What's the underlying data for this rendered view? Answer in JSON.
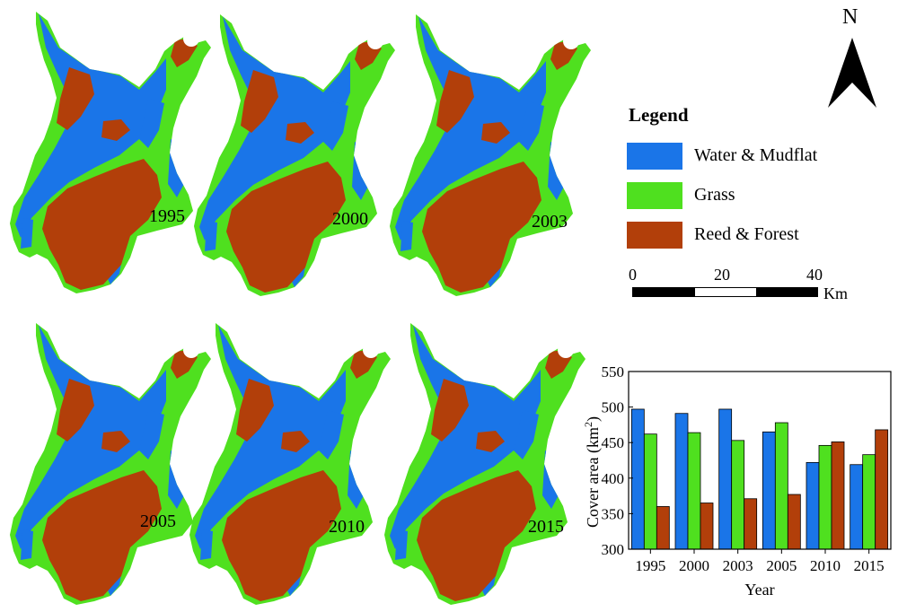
{
  "colors": {
    "water": "#1a75e8",
    "grass": "#4fe01f",
    "reed": "#b23f0a"
  },
  "maps": [
    {
      "year": "1995"
    },
    {
      "year": "2000"
    },
    {
      "year": "2003"
    },
    {
      "year": "2005"
    },
    {
      "year": "2010"
    },
    {
      "year": "2015"
    }
  ],
  "north_arrow": {
    "letter": "N"
  },
  "legend": {
    "title": "Legend",
    "items": [
      {
        "label": "Water & Mudflat",
        "color": "#1a75e8"
      },
      {
        "label": "Grass",
        "color": "#4fe01f"
      },
      {
        "label": "Reed & Forest",
        "color": "#b23f0a"
      }
    ]
  },
  "scale_bar": {
    "ticks": [
      "0",
      "20",
      "40"
    ],
    "unit": "Km"
  },
  "chart_data": {
    "type": "bar",
    "categories": [
      "1995",
      "2000",
      "2003",
      "2005",
      "2010",
      "2015"
    ],
    "series": [
      {
        "name": "Water & Mudflat",
        "color": "#1a75e8",
        "values": [
          497,
          491,
          497,
          465,
          422,
          419
        ]
      },
      {
        "name": "Grass",
        "color": "#4fe01f",
        "values": [
          462,
          464,
          453,
          478,
          446,
          433
        ]
      },
      {
        "name": "Reed & Forest",
        "color": "#b23f0a",
        "values": [
          360,
          365,
          371,
          377,
          451,
          468
        ]
      }
    ],
    "ylabel": "Cover area (km²)",
    "ylabel_main": "Cover area (km",
    "ylabel_sup": "2",
    "ylabel_end": ")",
    "xlabel": "Year",
    "ylim": [
      300,
      550
    ],
    "yticks": [
      "300",
      "350",
      "400",
      "450",
      "500",
      "550"
    ]
  }
}
